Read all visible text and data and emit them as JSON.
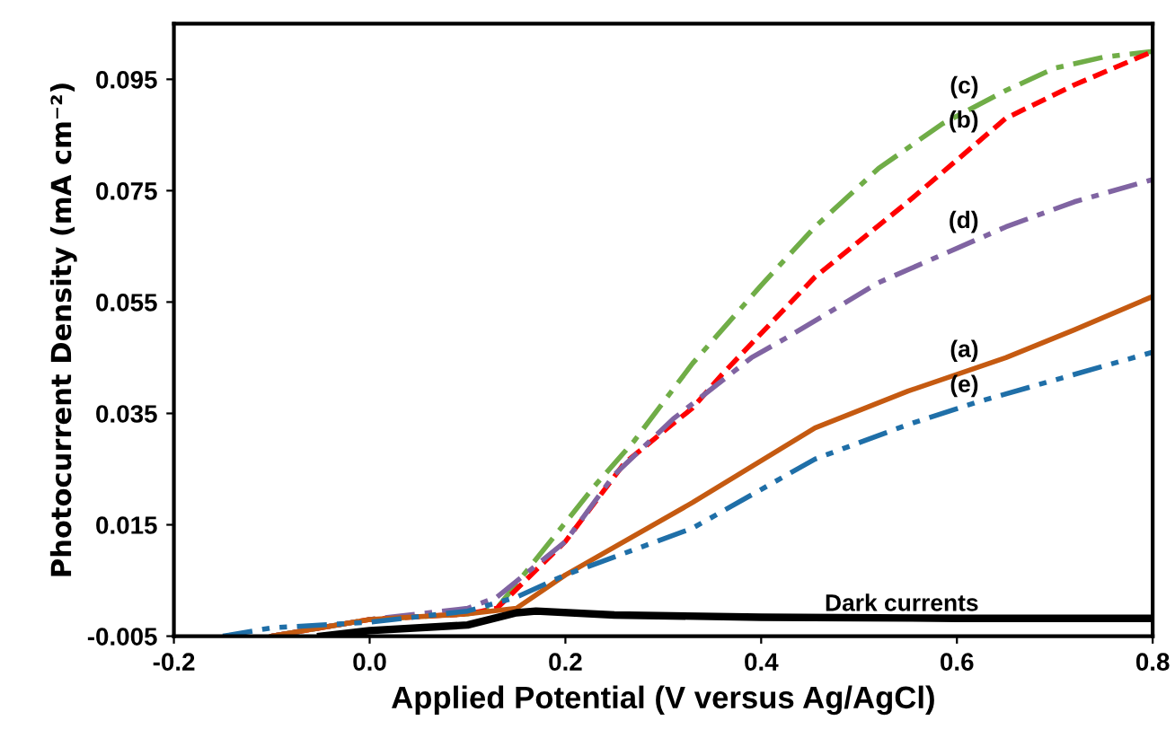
{
  "chart_data": {
    "type": "line",
    "xlabel": "Applied Potential (V versus Ag/AgCl)",
    "ylabel": "Photocurrent Density (mA cm⁻²)",
    "xlim": [
      -0.2,
      0.8
    ],
    "ylim": [
      -0.005,
      0.105
    ],
    "xticks": [
      {
        "value": -0.2,
        "label": "-0.2"
      },
      {
        "value": 0,
        "label": "0.0"
      },
      {
        "value": 0.2,
        "label": "0.2"
      },
      {
        "value": 0.4,
        "label": "0.4"
      },
      {
        "value": 0.6,
        "label": "0.6"
      },
      {
        "value": 0.8,
        "label": "0.8"
      }
    ],
    "yticks": [
      -0.005,
      0.015,
      0.035,
      0.055,
      0.075,
      0.095
    ],
    "grid": false,
    "series": [
      {
        "name": "(c)",
        "color": "#70ad47",
        "line_style": "dashdot",
        "x": [
          -0.1,
          0,
          0.1,
          0.13,
          0.18,
          0.23,
          0.27,
          0.33,
          0.4,
          0.455,
          0.52,
          0.585,
          0.65,
          0.7,
          0.75,
          0.8
        ],
        "values": [
          -0.005,
          -0.002,
          -0.001,
          0.0,
          0.011,
          0.022,
          0.03,
          0.044,
          0.058,
          0.0685,
          0.079,
          0.087,
          0.093,
          0.097,
          0.099,
          0.1
        ]
      },
      {
        "name": "(b)",
        "color": "#ff0000",
        "line_style": "dashed",
        "x": [
          -0.1,
          0,
          0.1,
          0.13,
          0.2,
          0.26,
          0.33,
          0.36,
          0.455,
          0.55,
          0.65,
          0.72,
          0.8
        ],
        "values": [
          -0.005,
          -0.002,
          -0.001,
          0.0,
          0.012,
          0.026,
          0.036,
          0.042,
          0.0595,
          0.073,
          0.088,
          0.094,
          0.1
        ]
      },
      {
        "name": "(d)",
        "color": "#8064a2",
        "line_style": "dashdot",
        "x": [
          -0.1,
          0,
          0.1,
          0.13,
          0.2,
          0.25,
          0.31,
          0.39,
          0.43,
          0.52,
          0.65,
          0.72,
          0.8
        ],
        "values": [
          -0.005,
          -0.002,
          0.0,
          0.002,
          0.012,
          0.024,
          0.034,
          0.045,
          0.049,
          0.0585,
          0.0685,
          0.073,
          0.077
        ]
      },
      {
        "name": "(a)",
        "color": "#c55a11",
        "line_style": "solid",
        "x": [
          -0.1,
          0,
          0.1,
          0.15,
          0.2,
          0.33,
          0.455,
          0.55,
          0.65,
          0.72,
          0.8
        ],
        "values": [
          -0.005,
          -0.002,
          -0.001,
          0.0,
          0.006,
          0.019,
          0.0324,
          0.039,
          0.045,
          0.05,
          0.056
        ]
      },
      {
        "name": "(e)",
        "color": "#1f6fa8",
        "line_style": "dashdotdot",
        "x": [
          -0.15,
          -0.1,
          0,
          0.1,
          0.15,
          0.2,
          0.33,
          0.455,
          0.55,
          0.62,
          0.7,
          0.8
        ],
        "values": [
          -0.005,
          -0.0035,
          -0.0025,
          -0.0005,
          0.002,
          0.006,
          0.0144,
          0.0268,
          0.033,
          0.037,
          0.041,
          0.046
        ]
      },
      {
        "name": "Dark currents",
        "color": "#000000",
        "line_style": "solid",
        "x": [
          -0.05,
          0,
          0.1,
          0.15,
          0.17,
          0.25,
          0.4,
          0.6,
          0.8
        ],
        "values": [
          -0.005,
          -0.004,
          -0.003,
          -0.0008,
          -0.0005,
          -0.0012,
          -0.0016,
          -0.0018,
          -0.0018
        ]
      }
    ]
  }
}
